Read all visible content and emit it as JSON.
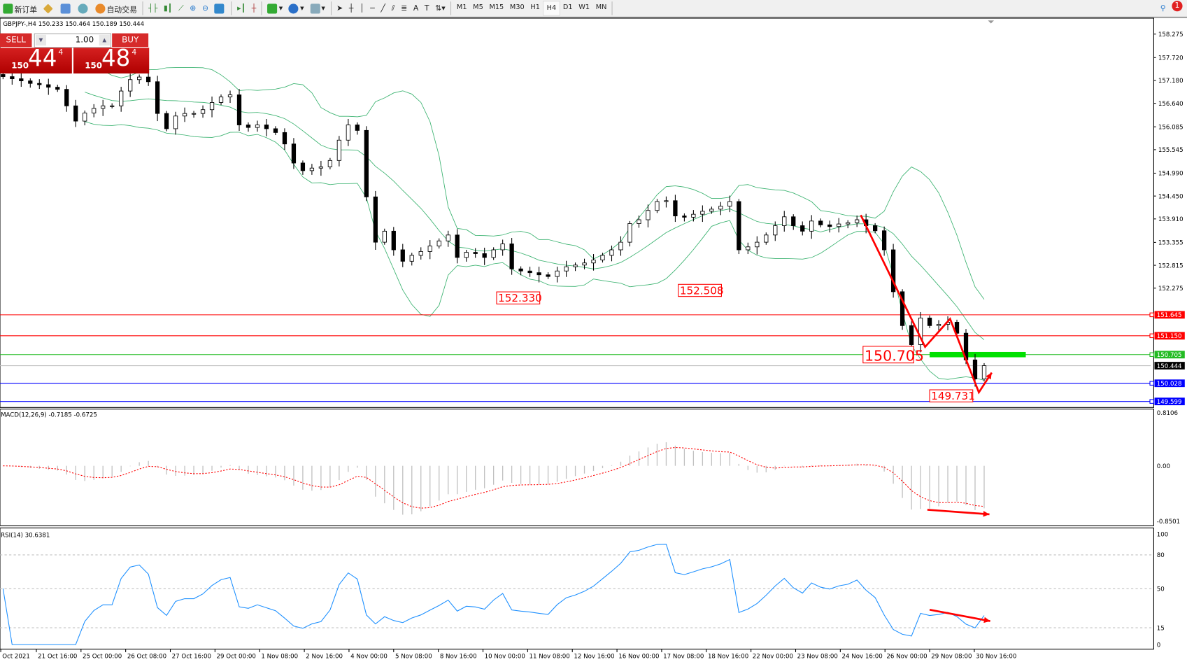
{
  "toolbar": {
    "new_order_label": "新订单",
    "auto_trading_label": "自动交易",
    "timeframes": [
      "M1",
      "M5",
      "M15",
      "M30",
      "H1",
      "H4",
      "D1",
      "W1",
      "MN"
    ],
    "active_timeframe": "H4",
    "notification_count": "1"
  },
  "chart_info": "GBPJPY-,H4  150.233 150.464 150.189 150.444",
  "one_click": {
    "sell_label": "SELL",
    "buy_label": "BUY",
    "lot": "1.00",
    "sell_prefix": "150",
    "sell_big": "44",
    "sell_sup": "4",
    "buy_prefix": "150",
    "buy_big": "48",
    "buy_sup": "4"
  },
  "macd_label": "MACD(12,26,9) -0.7185 -0.6725",
  "rsi_label": "RSI(14) 30.6381",
  "colors": {
    "bull": "#ffffff",
    "bear": "#000000",
    "bands": "#3cb371",
    "support_resistance": "#ff0000",
    "green_level": "#22bb22",
    "blue_level": "#0000ff",
    "rsi": "#1e90ff",
    "signal": "#ff0000",
    "annotation": "#ff0000"
  },
  "chart_data": {
    "type": "candlestick",
    "symbol": "GBPJPY-",
    "timeframe": "H4",
    "ylim": [
      149.599,
      158.275
    ],
    "price_ticks": [
      "158.275",
      "157.720",
      "157.180",
      "156.640",
      "156.085",
      "155.545",
      "154.990",
      "154.450",
      "153.910",
      "153.355",
      "152.815",
      "152.275"
    ],
    "closes": [
      157.27,
      157.22,
      157.17,
      157.11,
      157.08,
      157.02,
      156.97,
      156.58,
      156.22,
      156.41,
      156.52,
      156.58,
      156.58,
      156.93,
      157.2,
      157.26,
      157.15,
      156.4,
      156.04,
      156.34,
      156.4,
      156.4,
      156.49,
      156.66,
      156.79,
      156.84,
      156.13,
      156.07,
      156.13,
      156.04,
      155.95,
      155.68,
      155.23,
      155.05,
      155.11,
      155.14,
      155.29,
      155.77,
      156.13,
      156.0,
      154.43,
      153.36,
      153.62,
      153.18,
      152.91,
      153.05,
      153.14,
      153.27,
      153.39,
      153.53,
      153.0,
      153.12,
      153.09,
      153.0,
      153.18,
      153.32,
      152.73,
      152.68,
      152.64,
      152.59,
      152.55,
      152.68,
      152.78,
      152.82,
      152.87,
      152.94,
      153.05,
      153.18,
      153.36,
      153.8,
      153.89,
      154.11,
      154.32,
      154.34,
      153.98,
      153.95,
      154.02,
      154.09,
      154.14,
      154.21,
      154.32,
      153.18,
      153.25,
      153.36,
      153.53,
      153.75,
      153.96,
      153.75,
      153.62,
      153.86,
      153.77,
      153.73,
      153.79,
      153.82,
      153.89,
      153.75,
      153.63,
      153.18,
      152.19,
      151.39,
      150.94,
      151.57,
      151.39,
      151.42,
      151.47,
      151.21,
      150.58,
      150.13,
      150.444
    ],
    "time_labels": [
      "Oct 2021",
      "21 Oct 16:00",
      "25 Oct 00:00",
      "26 Oct 08:00",
      "27 Oct 16:00",
      "29 Oct 00:00",
      "1 Nov 08:00",
      "2 Nov 16:00",
      "4 Nov 00:00",
      "5 Nov 08:00",
      "8 Nov 16:00",
      "10 Nov 00:00",
      "11 Nov 08:00",
      "12 Nov 16:00",
      "16 Nov 00:00",
      "17 Nov 08:00",
      "18 Nov 16:00",
      "22 Nov 00:00",
      "23 Nov 08:00",
      "24 Nov 16:00",
      "26 Nov 00:00",
      "29 Nov 08:00",
      "30 Nov 16:00"
    ],
    "horizontal_levels": [
      {
        "price": 151.645,
        "label": "151.645",
        "color": "#ff0000"
      },
      {
        "price": 151.15,
        "label": "151.150",
        "color": "#ff0000"
      },
      {
        "price": 150.705,
        "label": "150.705",
        "color": "#22bb22"
      },
      {
        "price": 150.444,
        "label": "150.444",
        "color": "#c0c0c0",
        "label_bg": "#000000"
      },
      {
        "price": 150.028,
        "label": "150.028",
        "color": "#0000ff"
      },
      {
        "price": 149.599,
        "label": "149.599",
        "color": "#0000ff"
      }
    ],
    "price_annotations": [
      {
        "text": "152.330",
        "price": 152.33,
        "candle": 56,
        "size": "small"
      },
      {
        "text": "152.508",
        "price": 152.508,
        "candle": 76,
        "size": "small"
      },
      {
        "text": "150.705",
        "price": 150.705,
        "candle": 95,
        "size": "large"
      },
      {
        "text": "149.731",
        "price": 149.731,
        "candle": 102,
        "size": "small"
      }
    ],
    "macd": {
      "ylim": [
        -0.8501,
        0.8106
      ],
      "ticks": [
        "0.8106",
        "0.00",
        "-0.8501"
      ]
    },
    "rsi": {
      "ylim": [
        0,
        100
      ],
      "ticks": [
        "100",
        "80",
        "50",
        "15",
        "0"
      ],
      "levels": [
        80,
        50,
        15
      ]
    }
  }
}
